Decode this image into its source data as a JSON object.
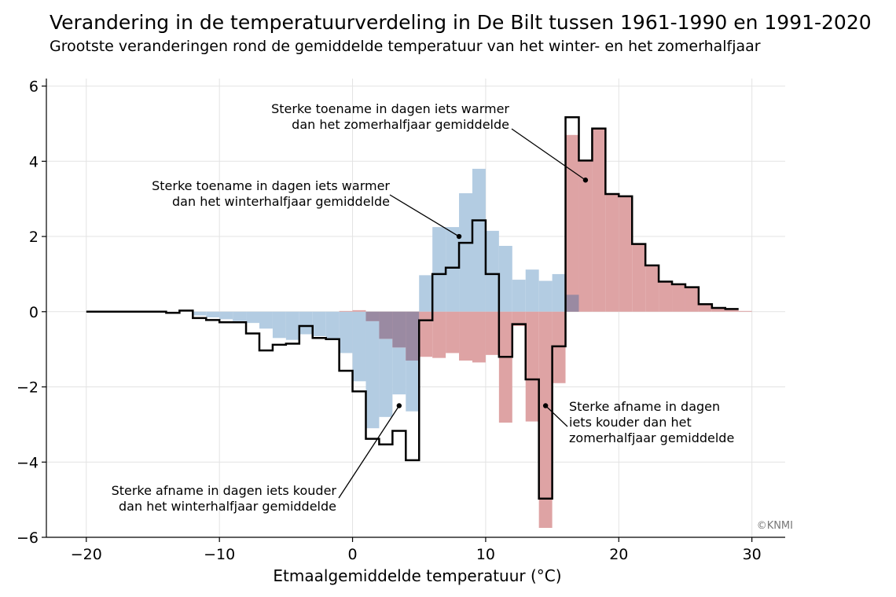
{
  "header": {
    "title": "Verandering in de temperatuurverdeling in De Bilt tussen 1961-1990 en 1991-2020",
    "subtitle": "Grootste veranderingen rond de gemiddelde temperatuur van het winter- en het zomerhalfjaar"
  },
  "colors": {
    "winter": "#b3cce2",
    "summer": "#dea3a4",
    "overlap": "#9a8aa2",
    "total_line": "#000000",
    "grid": "#e3e3e3"
  },
  "credit": "©KNMI",
  "chart_data": {
    "type": "bar",
    "xlabel": "Etmaalgemiddelde temperatuur (°C)",
    "ylabel": "",
    "xlim": [
      -23,
      32.5
    ],
    "ylim": [
      -6,
      6.2
    ],
    "grid": true,
    "bin_width": 1,
    "xticks": [
      -20,
      -10,
      0,
      10,
      20,
      30
    ],
    "xtick_labels": [
      "−20",
      "−10",
      "0",
      "10",
      "20",
      "30"
    ],
    "yticks": [
      -6,
      -4,
      -2,
      0,
      2,
      4,
      6
    ],
    "ytick_labels": [
      "−6",
      "−4",
      "−2",
      "0",
      "2",
      "4",
      "6"
    ],
    "series": [
      {
        "key": "winter",
        "bars": [
          {
            "x0": -12,
            "v": -0.1
          },
          {
            "x0": -11,
            "v": -0.15
          },
          {
            "x0": -10,
            "v": -0.2
          },
          {
            "x0": -9,
            "v": -0.25
          },
          {
            "x0": -8,
            "v": -0.3
          },
          {
            "x0": -7,
            "v": -0.45
          },
          {
            "x0": -6,
            "v": -0.7
          },
          {
            "x0": -5,
            "v": -0.75
          },
          {
            "x0": -4,
            "v": -0.6
          },
          {
            "x0": -3,
            "v": -0.65
          },
          {
            "x0": -2,
            "v": -0.75
          },
          {
            "x0": -1,
            "v": -1.1
          },
          {
            "x0": 0,
            "v": -1.85
          },
          {
            "x0": 1,
            "v": -3.1
          },
          {
            "x0": 2,
            "v": -2.8
          },
          {
            "x0": 3,
            "v": -2.2
          },
          {
            "x0": 4,
            "v": -2.65
          },
          {
            "x0": 5,
            "v": 0.97
          },
          {
            "x0": 6,
            "v": 2.25
          },
          {
            "x0": 7,
            "v": 2.25
          },
          {
            "x0": 8,
            "v": 3.15
          },
          {
            "x0": 9,
            "v": 3.8
          },
          {
            "x0": 10,
            "v": 2.15
          },
          {
            "x0": 11,
            "v": 1.75
          },
          {
            "x0": 12,
            "v": 0.85
          },
          {
            "x0": 13,
            "v": 1.12
          },
          {
            "x0": 14,
            "v": 0.82
          },
          {
            "x0": 15,
            "v": 1.0
          },
          {
            "x0": 16,
            "v": 0.45
          }
        ]
      },
      {
        "key": "summer",
        "bars": [
          {
            "x0": -1,
            "v": 0.02
          },
          {
            "x0": 0,
            "v": 0.04
          },
          {
            "x0": 1,
            "v": -0.25
          },
          {
            "x0": 2,
            "v": -0.72
          },
          {
            "x0": 3,
            "v": -0.95
          },
          {
            "x0": 4,
            "v": -1.3
          },
          {
            "x0": 5,
            "v": -1.2
          },
          {
            "x0": 6,
            "v": -1.23
          },
          {
            "x0": 7,
            "v": -1.1
          },
          {
            "x0": 8,
            "v": -1.3
          },
          {
            "x0": 9,
            "v": -1.35
          },
          {
            "x0": 10,
            "v": -1.15
          },
          {
            "x0": 11,
            "v": -2.95
          },
          {
            "x0": 12,
            "v": -0.38
          },
          {
            "x0": 13,
            "v": -2.92
          },
          {
            "x0": 14,
            "v": -5.75
          },
          {
            "x0": 15,
            "v": -1.9
          },
          {
            "x0": 16,
            "v": 4.7
          },
          {
            "x0": 17,
            "v": 4.0
          },
          {
            "x0": 18,
            "v": 4.87
          },
          {
            "x0": 19,
            "v": 3.13
          },
          {
            "x0": 20,
            "v": 3.08
          },
          {
            "x0": 21,
            "v": 1.8
          },
          {
            "x0": 22,
            "v": 1.23
          },
          {
            "x0": 23,
            "v": 0.8
          },
          {
            "x0": 24,
            "v": 0.73
          },
          {
            "x0": 25,
            "v": 0.65
          },
          {
            "x0": 26,
            "v": 0.2
          },
          {
            "x0": 27,
            "v": 0.12
          },
          {
            "x0": 28,
            "v": 0.07
          },
          {
            "x0": 29,
            "v": 0.02
          }
        ]
      }
    ],
    "total_step": {
      "edges": [
        -20,
        -14,
        -13,
        -12,
        -11,
        -10,
        -9,
        -8,
        -7,
        -6,
        -5,
        -4,
        -3,
        -2,
        -1,
        0,
        1,
        2,
        3,
        4,
        5,
        6,
        7,
        8,
        9,
        10,
        11,
        12,
        13,
        14,
        15,
        16,
        17,
        18,
        19,
        20,
        21,
        22,
        23,
        24,
        25,
        26,
        27,
        28,
        29
      ],
      "values": [
        0,
        -0.03,
        0.03,
        -0.17,
        -0.22,
        -0.28,
        -0.28,
        -0.58,
        -1.03,
        -0.88,
        -0.85,
        -0.38,
        -0.7,
        -0.73,
        -1.57,
        -2.12,
        -3.38,
        -3.53,
        -3.17,
        -3.95,
        -0.23,
        1.0,
        1.17,
        1.83,
        2.43,
        1.0,
        -1.2,
        -0.33,
        -1.8,
        -4.97,
        -0.92,
        5.17,
        4.02,
        4.87,
        3.13,
        3.07,
        1.8,
        1.23,
        0.8,
        0.73,
        0.65,
        0.2,
        0.1,
        0.07
      ]
    },
    "annotations": [
      {
        "lines": [
          "Sterke toename in dagen iets warmer",
          "dan het zomerhalfjaar gemiddelde"
        ],
        "point": [
          17.5,
          3.5
        ],
        "anchor": "end"
      },
      {
        "lines": [
          "Sterke toename in dagen iets warmer",
          "dan het winterhalfjaar gemiddelde"
        ],
        "point": [
          8.0,
          2.0
        ],
        "anchor": "end"
      },
      {
        "lines": [
          "Sterke afname in dagen",
          "iets kouder dan het",
          "zomerhalfjaar gemiddelde"
        ],
        "point": [
          14.5,
          -2.5
        ],
        "anchor": "start"
      },
      {
        "lines": [
          "Sterke afname in dagen iets kouder",
          "dan het winterhalfjaar gemiddelde"
        ],
        "point": [
          3.5,
          -2.5
        ],
        "anchor": "end"
      }
    ]
  }
}
